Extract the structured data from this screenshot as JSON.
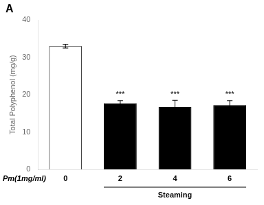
{
  "chart_data": {
    "type": "bar",
    "title": "A",
    "categories": [
      "0",
      "2",
      "4",
      "6"
    ],
    "values": [
      33.0,
      17.7,
      16.7,
      17.2
    ],
    "errors": [
      0.5,
      0.7,
      1.8,
      1.2
    ],
    "colors": [
      "#ffffff",
      "#000000",
      "#000000",
      "#000000"
    ],
    "edge_color": "#000000",
    "ylabel": "Total Polyphenol (mg/g)",
    "xlabel": "Pm(1mg/ml)",
    "group_labels": [
      {
        "text": "Steaming",
        "categories": [
          "2",
          "4",
          "6"
        ]
      }
    ],
    "annotations": [
      {
        "category": "2",
        "text": "***"
      },
      {
        "category": "4",
        "text": "***"
      },
      {
        "category": "6",
        "text": "***"
      }
    ],
    "ylim": [
      0,
      40
    ],
    "yticks": [
      0,
      10,
      20,
      30,
      40
    ],
    "grid": false
  }
}
